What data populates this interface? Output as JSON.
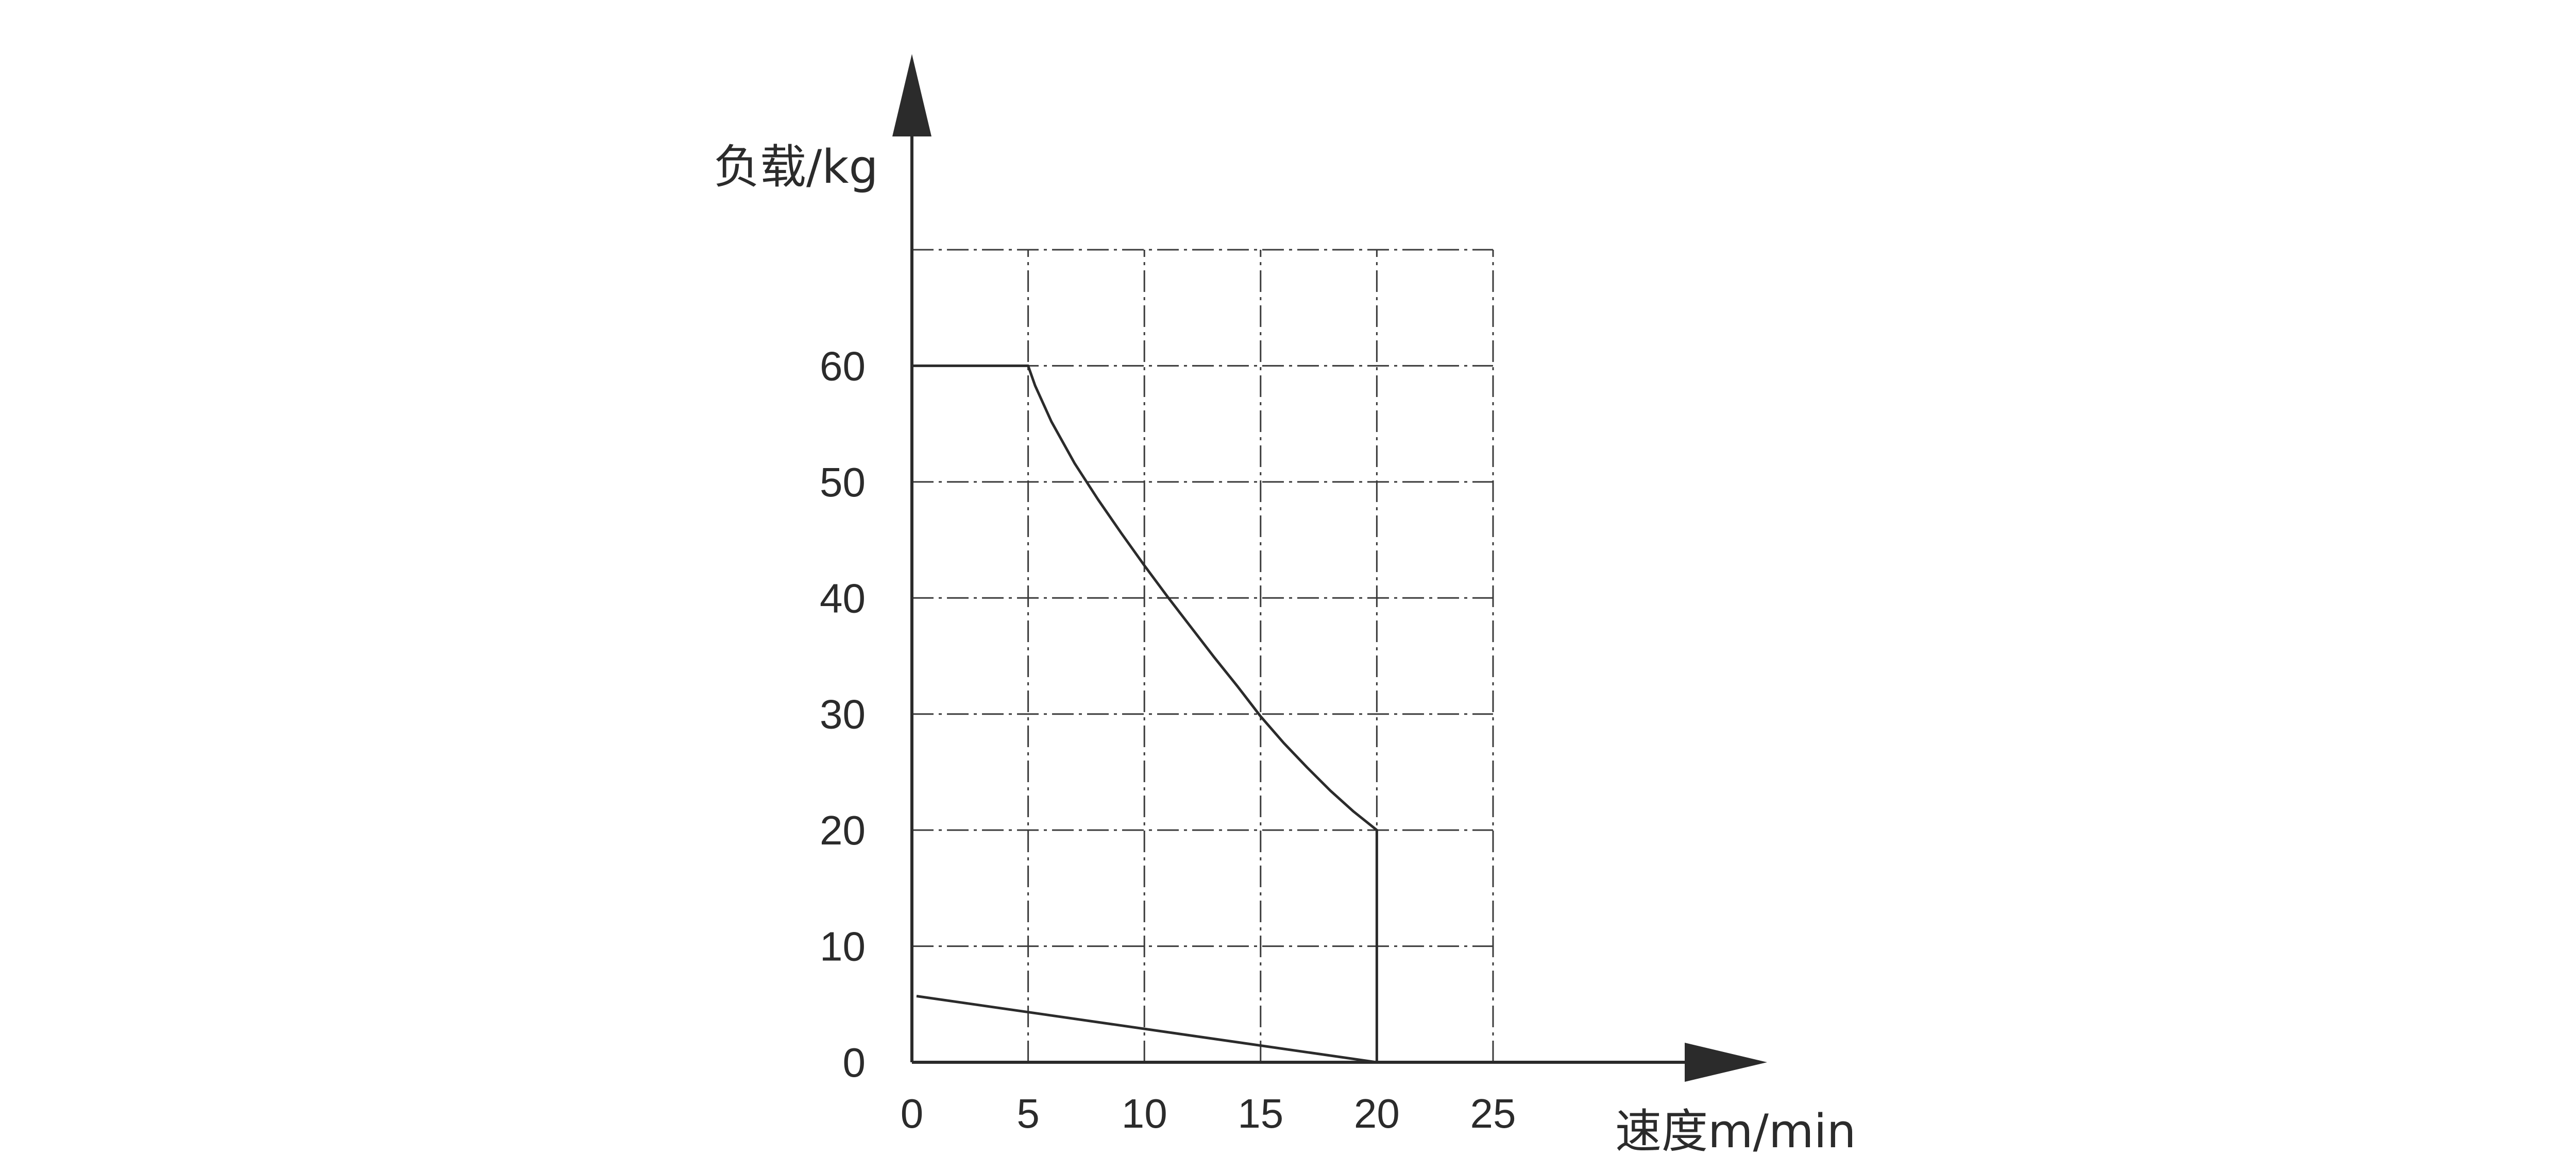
{
  "chart_data": {
    "type": "line",
    "title": "",
    "xlabel": "速度m/min",
    "ylabel": "负载/kg",
    "xlim": [
      0,
      25
    ],
    "ylim": [
      0,
      70
    ],
    "x_ticks": [
      "0",
      "5",
      "10",
      "15",
      "20",
      "25"
    ],
    "y_ticks": [
      "0",
      "10",
      "20",
      "30",
      "40",
      "50",
      "60"
    ],
    "grid": true,
    "grid_style": "dash-dot",
    "legend": "none",
    "colors": {
      "line": "#2b2b2b",
      "grid": "#3a3a3a",
      "axis": "#2b2b2b"
    },
    "series": [
      {
        "x": [
          0,
          5,
          5.3,
          6,
          7,
          8,
          9,
          10,
          11,
          12,
          13,
          14,
          15,
          16,
          17,
          18,
          19,
          20,
          20
        ],
        "y": [
          60,
          60,
          58.3,
          55.2,
          51.6,
          48.5,
          45.6,
          42.8,
          40.1,
          37.5,
          34.9,
          32.4,
          29.8,
          27.5,
          25.4,
          23.4,
          21.6,
          20,
          0
        ]
      },
      {
        "x": [
          0.2,
          20
        ],
        "y": [
          5.7,
          0
        ]
      }
    ]
  }
}
